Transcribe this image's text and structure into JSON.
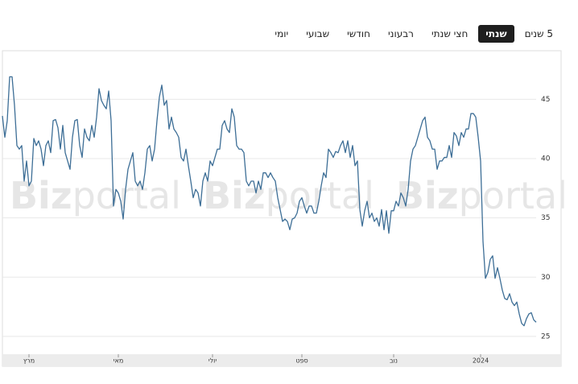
{
  "tabs": [
    "יומי",
    "שבועי",
    "חודשי",
    "רבעוני",
    "חצי שנתי",
    "שנתי",
    "5 שנים"
  ],
  "selected_tab": 5,
  "chart_data": {
    "type": "line",
    "watermark": {
      "bold": "Biz",
      "light": "portal"
    },
    "series": [
      {
        "color": "#3d6e96",
        "values": [
          43.6,
          41.8,
          43.2,
          46.9,
          46.9,
          44.5,
          41.1,
          40.8,
          41.1,
          38.1,
          39.8,
          37.7,
          38.1,
          41.7,
          41.1,
          41.5,
          40.8,
          39.4,
          41.1,
          41.5,
          40.5,
          43.2,
          43.3,
          42.6,
          40.8,
          42.8,
          40.5,
          39.8,
          39.1,
          41.8,
          43.2,
          43.3,
          41.1,
          40.1,
          42.5,
          41.8,
          41.5,
          42.8,
          41.8,
          43.5,
          45.9,
          44.9,
          44.5,
          44.2,
          45.7,
          43.2,
          36.0,
          37.4,
          37.1,
          36.4,
          34.9,
          37.4,
          39.1,
          39.8,
          40.5,
          38.1,
          37.7,
          38.1,
          37.4,
          38.8,
          40.8,
          41.1,
          39.8,
          40.8,
          43.2,
          45.2,
          46.2,
          44.5,
          44.9,
          42.5,
          43.5,
          42.5,
          42.2,
          41.8,
          40.1,
          39.8,
          40.8,
          39.4,
          38.1,
          36.7,
          37.4,
          37.1,
          36.0,
          38.1,
          38.8,
          38.1,
          39.8,
          39.4,
          40.1,
          40.8,
          40.8,
          42.8,
          43.2,
          42.5,
          42.2,
          44.2,
          43.5,
          41.1,
          40.8,
          40.8,
          40.5,
          38.1,
          37.7,
          38.1,
          38.1,
          37.1,
          38.1,
          37.4,
          38.8,
          38.8,
          38.4,
          38.8,
          38.4,
          38.1,
          36.7,
          35.7,
          34.7,
          34.9,
          34.7,
          34.0,
          34.9,
          35.0,
          35.4,
          36.4,
          36.7,
          36.0,
          35.4,
          36.0,
          36.0,
          35.4,
          35.4,
          36.4,
          37.7,
          38.8,
          38.4,
          40.8,
          40.5,
          40.1,
          40.6,
          40.5,
          41.1,
          41.5,
          40.5,
          41.5,
          40.1,
          41.1,
          39.4,
          39.8,
          35.7,
          34.3,
          35.6,
          36.4,
          35.0,
          35.4,
          34.7,
          35.0,
          34.3,
          35.7,
          34.0,
          35.6,
          33.7,
          35.6,
          35.6,
          36.4,
          36.0,
          37.1,
          36.7,
          36.0,
          37.4,
          39.8,
          40.8,
          41.1,
          41.8,
          42.5,
          43.2,
          43.5,
          41.8,
          41.5,
          40.8,
          40.8,
          39.1,
          39.8,
          39.8,
          40.1,
          40.1,
          41.1,
          40.1,
          42.2,
          41.9,
          41.1,
          42.2,
          41.8,
          42.5,
          42.5,
          43.8,
          43.8,
          43.5,
          41.8,
          39.8,
          33.0,
          29.9,
          30.4,
          31.5,
          31.8,
          29.9,
          30.8,
          29.9,
          28.9,
          28.2,
          28.1,
          28.6,
          27.9,
          27.6,
          27.9,
          26.9,
          26.1,
          25.9,
          26.5,
          26.9,
          27.0,
          26.4,
          26.2
        ]
      }
    ],
    "xlim": [
      0,
      221
    ],
    "xticks": [
      {
        "value": 11,
        "label": "מרץ"
      },
      {
        "value": 48,
        "label": "מאי"
      },
      {
        "value": 87,
        "label": "יולי"
      },
      {
        "value": 124,
        "label": "ספט"
      },
      {
        "value": 162,
        "label": "נוב"
      },
      {
        "value": 198,
        "label": "2024"
      }
    ],
    "ylim": [
      23.5,
      49.1
    ],
    "yticks": [
      25,
      30,
      35,
      40,
      45
    ],
    "grid": true
  }
}
